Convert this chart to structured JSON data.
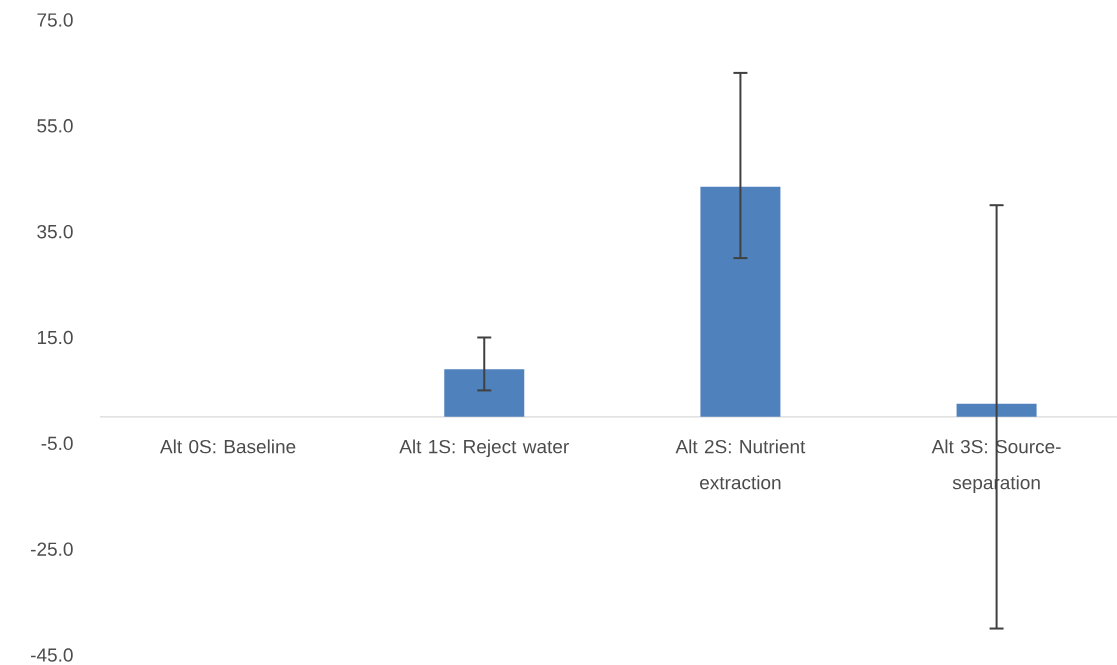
{
  "chart_data": {
    "type": "bar",
    "categories": [
      "Alt 0S: Baseline",
      "Alt 1S: Reject water",
      "Alt 2S: Nutrient extraction",
      "Alt 3S: Source-separation"
    ],
    "values": [
      0,
      9,
      43.5,
      2.5
    ],
    "color": "#4f81bd",
    "errors": [
      null,
      [
        5,
        15
      ],
      [
        30,
        65
      ],
      [
        -40,
        40
      ]
    ],
    "ylim": [
      -45,
      75
    ],
    "yticks": [
      {
        "value": 75,
        "label": "75.0"
      },
      {
        "value": 55,
        "label": "55.0"
      },
      {
        "value": 35,
        "label": "35.0"
      },
      {
        "value": 15,
        "label": "15.0"
      },
      {
        "value": -5,
        "label": "-5.0"
      },
      {
        "value": -25,
        "label": "-25.0"
      },
      {
        "value": -45,
        "label": "-45.0"
      }
    ]
  }
}
